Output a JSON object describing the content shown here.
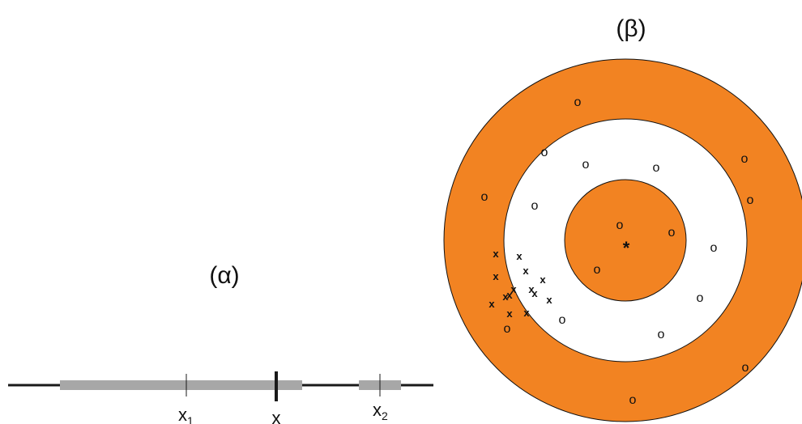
{
  "panel_a": {
    "label": "(α)",
    "x1_base": "x",
    "x1_sub": "1",
    "x_label": "x",
    "x2_base": "x",
    "x2_sub": "2"
  },
  "panel_b": {
    "label": "(β)",
    "center_marker": "*",
    "o_marker": "o",
    "x_marker": "x"
  },
  "colors": {
    "ring": "#F28322",
    "gray_segment": "#A7A7A7",
    "line": "#1a1a1a"
  }
}
